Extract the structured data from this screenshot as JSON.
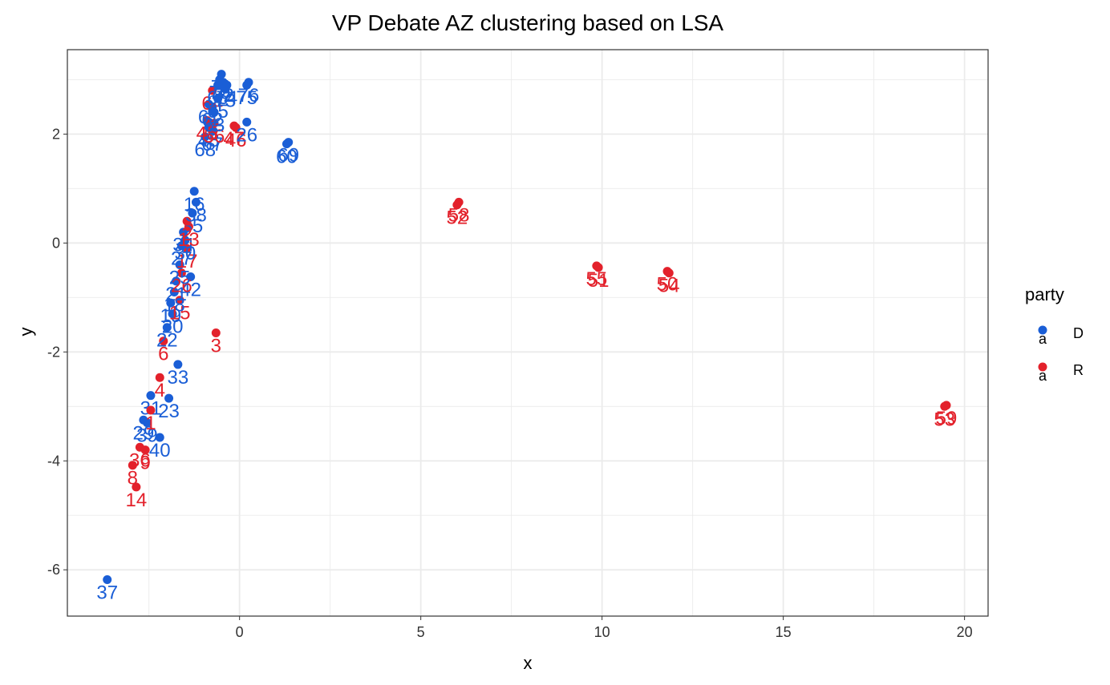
{
  "chart_data": {
    "type": "scatter",
    "title": "VP Debate AZ clustering based on LSA",
    "xlabel": "x",
    "ylabel": "y",
    "xlim": [
      -4.75,
      20.65
    ],
    "ylim": [
      -6.85,
      3.55
    ],
    "x_ticks": [
      0,
      5,
      10,
      15,
      20
    ],
    "y_ticks": [
      -6,
      -4,
      -2,
      0,
      2
    ],
    "x_tick_labels": [
      "0",
      "5",
      "10",
      "15",
      "20"
    ],
    "y_tick_labels": [
      "-6",
      "-4",
      "-2",
      "0",
      "2"
    ],
    "grid": true,
    "legend": {
      "title": "party",
      "position": "right",
      "items": [
        {
          "key": "D",
          "label": "D",
          "glyph": "a"
        },
        {
          "key": "R",
          "label": "R",
          "glyph": "a"
        }
      ]
    },
    "colors": {
      "D": "#1a5ed6",
      "R": "#e3212b"
    },
    "points": [
      {
        "label": "37",
        "party": "D",
        "x": -3.65,
        "y": -6.18
      },
      {
        "label": "14",
        "party": "R",
        "x": -2.85,
        "y": -4.48
      },
      {
        "label": "8",
        "party": "R",
        "x": -2.95,
        "y": -4.08
      },
      {
        "label": "36",
        "party": "R",
        "x": -2.75,
        "y": -3.75
      },
      {
        "label": "9",
        "party": "R",
        "x": -2.6,
        "y": -3.8
      },
      {
        "label": "40",
        "party": "D",
        "x": -2.2,
        "y": -3.57
      },
      {
        "label": "29",
        "party": "D",
        "x": -2.65,
        "y": -3.25
      },
      {
        "label": "39",
        "party": "D",
        "x": -2.55,
        "y": -3.3
      },
      {
        "label": "31",
        "party": "D",
        "x": -2.45,
        "y": -2.8
      },
      {
        "label": "1",
        "party": "R",
        "x": -2.45,
        "y": -3.07
      },
      {
        "label": "23",
        "party": "D",
        "x": -1.95,
        "y": -2.85
      },
      {
        "label": "4",
        "party": "R",
        "x": -2.2,
        "y": -2.47
      },
      {
        "label": "33",
        "party": "D",
        "x": -1.7,
        "y": -2.23
      },
      {
        "label": "3",
        "party": "R",
        "x": -0.65,
        "y": -1.65
      },
      {
        "label": "6",
        "party": "R",
        "x": -2.1,
        "y": -1.8
      },
      {
        "label": "22",
        "party": "D",
        "x": -2.0,
        "y": -1.55
      },
      {
        "label": "20",
        "party": "D",
        "x": -1.85,
        "y": -1.3
      },
      {
        "label": "19",
        "party": "D",
        "x": -1.9,
        "y": -1.1
      },
      {
        "label": "15",
        "party": "R",
        "x": -1.65,
        "y": -1.05
      },
      {
        "label": "18",
        "party": "D",
        "x": -1.8,
        "y": -0.9
      },
      {
        "label": "21",
        "party": "D",
        "x": -1.75,
        "y": -0.7
      },
      {
        "label": "42",
        "party": "D",
        "x": -1.35,
        "y": -0.62
      },
      {
        "label": "26",
        "party": "R",
        "x": -1.6,
        "y": -0.55
      },
      {
        "label": "25",
        "party": "D",
        "x": -1.65,
        "y": -0.4
      },
      {
        "label": "17",
        "party": "R",
        "x": -1.45,
        "y": -0.1
      },
      {
        "label": "27",
        "party": "D",
        "x": -1.6,
        "y": -0.05
      },
      {
        "label": "30",
        "party": "D",
        "x": -1.5,
        "y": 0.05
      },
      {
        "label": "34",
        "party": "D",
        "x": -1.55,
        "y": 0.2
      },
      {
        "label": "13",
        "party": "R",
        "x": -1.4,
        "y": 0.3
      },
      {
        "label": "35",
        "party": "D",
        "x": -1.3,
        "y": 0.55
      },
      {
        "label": "2",
        "party": "R",
        "x": -1.45,
        "y": 0.4
      },
      {
        "label": "38",
        "party": "D",
        "x": -1.2,
        "y": 0.75
      },
      {
        "label": "16",
        "party": "D",
        "x": -1.25,
        "y": 0.95
      },
      {
        "label": "68",
        "party": "D",
        "x": -0.95,
        "y": 1.95
      },
      {
        "label": "48",
        "party": "D",
        "x": -0.85,
        "y": 2.12
      },
      {
        "label": "67",
        "party": "D",
        "x": -0.75,
        "y": 2.05
      },
      {
        "label": "45",
        "party": "R",
        "x": -0.9,
        "y": 2.25
      },
      {
        "label": "56",
        "party": "R",
        "x": -0.7,
        "y": 2.2
      },
      {
        "label": "47",
        "party": "R",
        "x": -0.15,
        "y": 2.15
      },
      {
        "label": "46",
        "party": "R",
        "x": -0.1,
        "y": 2.12
      },
      {
        "label": "26b",
        "party": "D",
        "x": 0.2,
        "y": 2.22
      },
      {
        "label": "69",
        "party": "D",
        "x": 1.35,
        "y": 1.85
      },
      {
        "label": "60",
        "party": "D",
        "x": 1.3,
        "y": 1.82
      },
      {
        "label": "61",
        "party": "D",
        "x": -0.85,
        "y": 2.55
      },
      {
        "label": "62",
        "party": "D",
        "x": -0.75,
        "y": 2.5
      },
      {
        "label": "63",
        "party": "D",
        "x": -0.7,
        "y": 2.4
      },
      {
        "label": "64",
        "party": "R",
        "x": -0.75,
        "y": 2.8
      },
      {
        "label": "65",
        "party": "D",
        "x": -0.6,
        "y": 2.65
      },
      {
        "label": "66",
        "party": "D",
        "x": -0.6,
        "y": 2.9
      },
      {
        "label": "70",
        "party": "D",
        "x": -0.55,
        "y": 3.0
      },
      {
        "label": "71",
        "party": "D",
        "x": -0.5,
        "y": 3.1
      },
      {
        "label": "72",
        "party": "D",
        "x": -0.45,
        "y": 2.95
      },
      {
        "label": "73",
        "party": "D",
        "x": -0.4,
        "y": 2.85
      },
      {
        "label": "74",
        "party": "D",
        "x": -0.35,
        "y": 2.9
      },
      {
        "label": "76",
        "party": "D",
        "x": 0.25,
        "y": 2.95
      },
      {
        "label": "75",
        "party": "D",
        "x": 0.2,
        "y": 2.9
      },
      {
        "label": "58",
        "party": "R",
        "x": 6.05,
        "y": 0.75
      },
      {
        "label": "52",
        "party": "R",
        "x": 6.0,
        "y": 0.7
      },
      {
        "label": "55",
        "party": "R",
        "x": 9.85,
        "y": -0.42
      },
      {
        "label": "51",
        "party": "R",
        "x": 9.9,
        "y": -0.45
      },
      {
        "label": "50",
        "party": "R",
        "x": 11.8,
        "y": -0.52
      },
      {
        "label": "54",
        "party": "R",
        "x": 11.85,
        "y": -0.55
      },
      {
        "label": "59",
        "party": "R",
        "x": 19.5,
        "y": -2.98
      },
      {
        "label": "53",
        "party": "R",
        "x": 19.45,
        "y": -3.0
      }
    ]
  }
}
